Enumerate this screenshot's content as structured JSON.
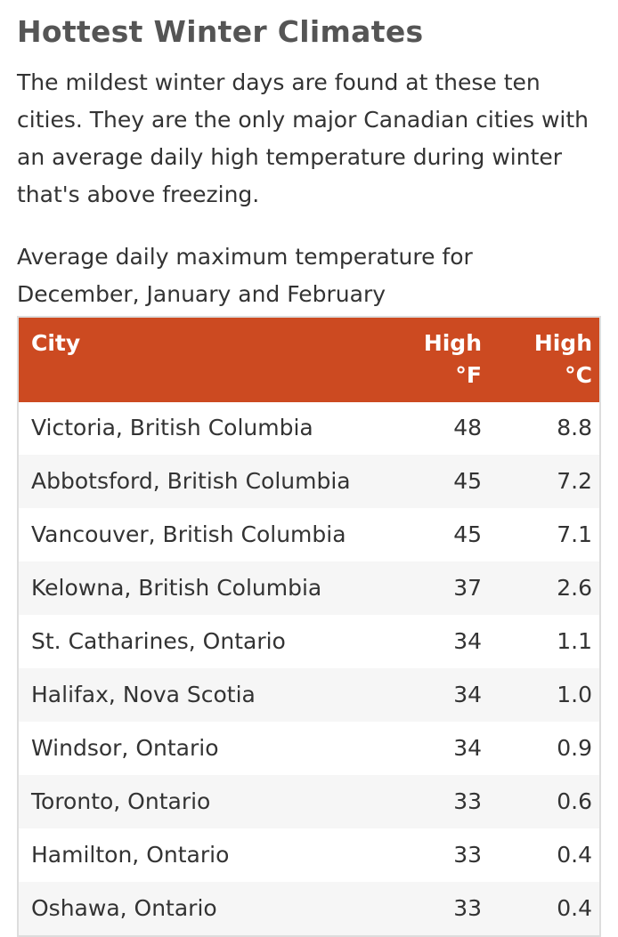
{
  "heading": "Hottest Winter Climates",
  "intro": "The mildest winter days are found at these ten cities. They are the only major Canadian cities with an average daily high temperature during winter that's above freezing.",
  "caption": "Average daily maximum temperature for December, January and February",
  "table": {
    "header_color": "#cc4a21",
    "columns": {
      "city": "City",
      "high_f": "High °F",
      "high_c": "High °C"
    },
    "rows": [
      {
        "city": "Victoria, British Columbia",
        "high_f": "48",
        "high_c": "8.8"
      },
      {
        "city": "Abbotsford, British Columbia",
        "high_f": "45",
        "high_c": "7.2"
      },
      {
        "city": "Vancouver, British Columbia",
        "high_f": "45",
        "high_c": "7.1"
      },
      {
        "city": "Kelowna, British Columbia",
        "high_f": "37",
        "high_c": "2.6"
      },
      {
        "city": "St. Catharines, Ontario",
        "high_f": "34",
        "high_c": "1.1"
      },
      {
        "city": "Halifax, Nova Scotia",
        "high_f": "34",
        "high_c": "1.0"
      },
      {
        "city": "Windsor, Ontario",
        "high_f": "34",
        "high_c": "0.9"
      },
      {
        "city": "Toronto, Ontario",
        "high_f": "33",
        "high_c": "0.6"
      },
      {
        "city": "Hamilton, Ontario",
        "high_f": "33",
        "high_c": "0.4"
      },
      {
        "city": "Oshawa, Ontario",
        "high_f": "33",
        "high_c": "0.4"
      }
    ]
  }
}
